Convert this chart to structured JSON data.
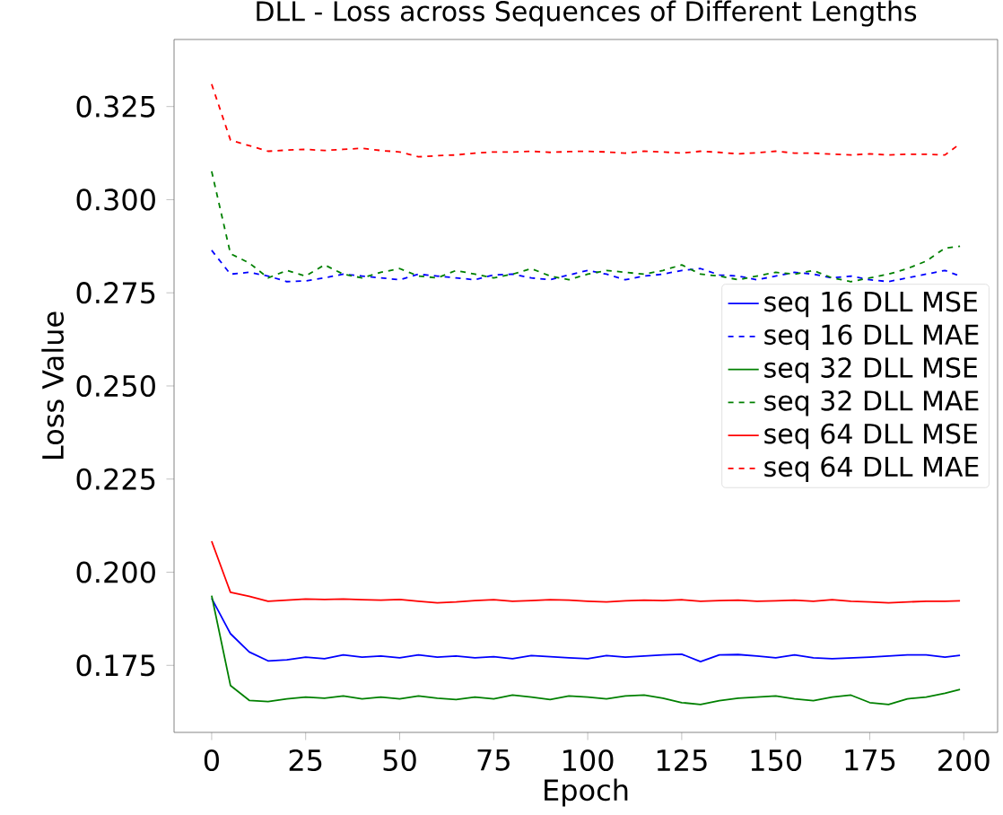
{
  "chart_data": {
    "type": "line",
    "title": "DLL - Loss across Sequences of Different Lengths",
    "xlabel": "Epoch",
    "ylabel": "Loss Value",
    "x": [
      0,
      5,
      10,
      15,
      20,
      25,
      30,
      35,
      40,
      45,
      50,
      55,
      60,
      65,
      70,
      75,
      80,
      85,
      90,
      95,
      100,
      105,
      110,
      115,
      120,
      125,
      130,
      135,
      140,
      145,
      150,
      155,
      160,
      165,
      170,
      175,
      180,
      185,
      190,
      195,
      199
    ],
    "xlim": [
      -10,
      209
    ],
    "xticks": [
      0,
      25,
      50,
      75,
      100,
      125,
      150,
      175,
      200
    ],
    "ylim": [
      0.157,
      0.343
    ],
    "yticks": [
      0.175,
      {
        "value": 0.2,
        "label": "0.200"
      },
      0.225,
      {
        "value": 0.25,
        "label": "0.250"
      },
      0.275,
      {
        "value": 0.3,
        "label": "0.300"
      },
      0.325
    ],
    "legend": "center right",
    "marker": "none",
    "series": [
      {
        "name": "seq 16 DLL MSE",
        "color": "#0000ff",
        "line_style": "solid",
        "values": [
          0.193,
          0.1835,
          0.1786,
          0.1762,
          0.1765,
          0.1772,
          0.1768,
          0.1778,
          0.1772,
          0.1775,
          0.177,
          0.1778,
          0.1772,
          0.1775,
          0.177,
          0.1773,
          0.1768,
          0.1776,
          0.1773,
          0.177,
          0.1768,
          0.1776,
          0.1772,
          0.1775,
          0.1778,
          0.178,
          0.176,
          0.1778,
          0.1779,
          0.1775,
          0.177,
          0.1778,
          0.177,
          0.1768,
          0.177,
          0.1772,
          0.1775,
          0.1778,
          0.1778,
          0.1772,
          0.1777
        ]
      },
      {
        "name": "seq 16 DLL MAE",
        "color": "#0000ff",
        "line_style": "dashed",
        "values": [
          0.2864,
          0.28,
          0.2805,
          0.2795,
          0.278,
          0.2782,
          0.279,
          0.28,
          0.2795,
          0.279,
          0.2785,
          0.28,
          0.2795,
          0.279,
          0.2785,
          0.2798,
          0.28,
          0.279,
          0.2785,
          0.2798,
          0.281,
          0.28,
          0.2785,
          0.2795,
          0.28,
          0.281,
          0.2815,
          0.2798,
          0.2795,
          0.2785,
          0.2795,
          0.2805,
          0.28,
          0.279,
          0.2795,
          0.2785,
          0.278,
          0.279,
          0.28,
          0.281,
          0.2795
        ]
      },
      {
        "name": "seq 32 DLL MSE",
        "color": "#008000",
        "line_style": "solid",
        "values": [
          0.1937,
          0.1696,
          0.1656,
          0.1653,
          0.166,
          0.1665,
          0.1662,
          0.1668,
          0.166,
          0.1665,
          0.166,
          0.1668,
          0.1662,
          0.1658,
          0.1665,
          0.166,
          0.167,
          0.1665,
          0.1658,
          0.1668,
          0.1665,
          0.166,
          0.1668,
          0.167,
          0.1662,
          0.165,
          0.1645,
          0.1655,
          0.1662,
          0.1665,
          0.1668,
          0.166,
          0.1655,
          0.1665,
          0.167,
          0.165,
          0.1645,
          0.166,
          0.1665,
          0.1675,
          0.1685
        ]
      },
      {
        "name": "seq 32 DLL MAE",
        "color": "#008000",
        "line_style": "dashed",
        "values": [
          0.3076,
          0.2855,
          0.283,
          0.279,
          0.281,
          0.2795,
          0.2825,
          0.28,
          0.279,
          0.2805,
          0.2815,
          0.2795,
          0.279,
          0.281,
          0.28,
          0.279,
          0.28,
          0.2815,
          0.2795,
          0.2785,
          0.28,
          0.281,
          0.2805,
          0.28,
          0.281,
          0.2825,
          0.28,
          0.2795,
          0.2785,
          0.2795,
          0.2805,
          0.28,
          0.281,
          0.279,
          0.278,
          0.279,
          0.28,
          0.2815,
          0.2835,
          0.287,
          0.2875
        ]
      },
      {
        "name": "seq 64 DLL MSE",
        "color": "#ff0000",
        "line_style": "solid",
        "values": [
          0.2083,
          0.1946,
          0.1935,
          0.1922,
          0.1925,
          0.1928,
          0.1927,
          0.1928,
          0.1926,
          0.1925,
          0.1927,
          0.1922,
          0.1918,
          0.192,
          0.1924,
          0.1926,
          0.1922,
          0.1924,
          0.1926,
          0.1925,
          0.1922,
          0.192,
          0.1923,
          0.1925,
          0.1924,
          0.1926,
          0.1922,
          0.1924,
          0.1925,
          0.1922,
          0.1923,
          0.1925,
          0.1922,
          0.1926,
          0.1922,
          0.192,
          0.1918,
          0.192,
          0.1922,
          0.1922,
          0.1923
        ]
      },
      {
        "name": "seq 64 DLL MAE",
        "color": "#ff0000",
        "line_style": "dashed",
        "values": [
          0.331,
          0.316,
          0.3145,
          0.313,
          0.3133,
          0.3135,
          0.3132,
          0.3135,
          0.3138,
          0.3132,
          0.3128,
          0.3115,
          0.3118,
          0.312,
          0.3125,
          0.3128,
          0.3128,
          0.313,
          0.3127,
          0.3129,
          0.313,
          0.3128,
          0.3125,
          0.313,
          0.3128,
          0.3125,
          0.313,
          0.3127,
          0.3123,
          0.3126,
          0.313,
          0.3125,
          0.3125,
          0.3122,
          0.312,
          0.3123,
          0.312,
          0.3122,
          0.3122,
          0.312,
          0.315
        ]
      }
    ]
  }
}
